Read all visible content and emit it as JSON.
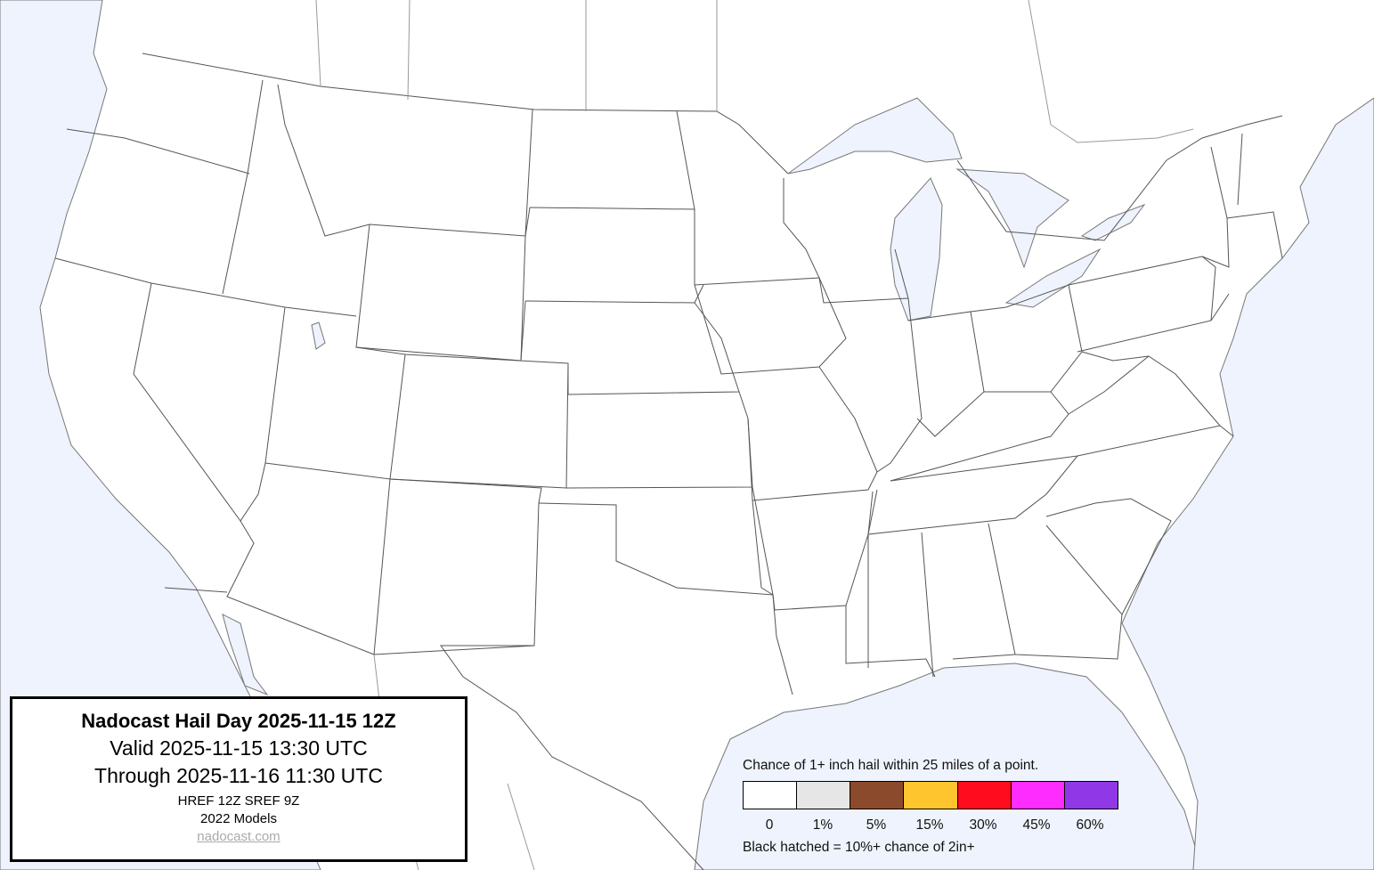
{
  "title_box": {
    "title": "Nadocast Hail Day 2025-11-15 12Z",
    "valid": "Valid 2025-11-15 13:30 UTC",
    "through": "Through 2025-11-16 11:30 UTC",
    "models_run": "HREF 12Z SREF 9Z",
    "models_version": "2022 Models",
    "link": "nadocast.com"
  },
  "legend": {
    "heading": "Chance of 1+ inch hail within 25 miles of a point.",
    "bins": [
      {
        "label": "0",
        "color": "#ffffff"
      },
      {
        "label": "1%",
        "color": "#e6e6e6"
      },
      {
        "label": "5%",
        "color": "#8b4a2b"
      },
      {
        "label": "15%",
        "color": "#ffc52e"
      },
      {
        "label": "30%",
        "color": "#ff0d1e"
      },
      {
        "label": "45%",
        "color": "#ff2cff"
      },
      {
        "label": "60%",
        "color": "#9038e8"
      }
    ],
    "note": "Black hatched = 10%+ chance of 2in+"
  },
  "map": {
    "water_color": "#eef3fd",
    "land_color": "#ffffff",
    "forecast_areas": "none"
  }
}
